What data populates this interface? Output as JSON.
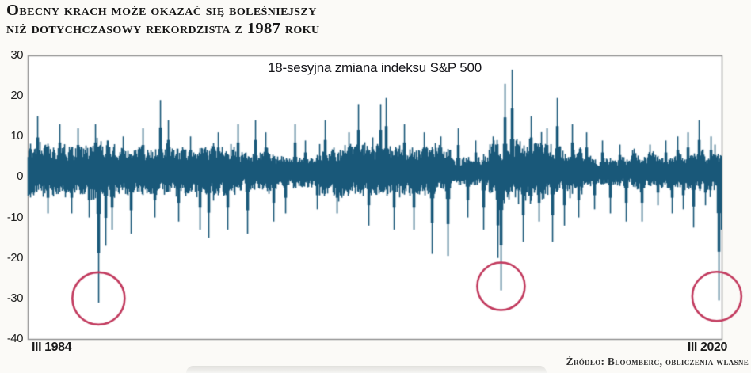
{
  "header": {
    "title_line1": "Obecny krach może okazać się boleśniejszy",
    "title_line2": "niż dotychczasowy rekordzista z 1987 roku"
  },
  "footer": {
    "source": "Źródło: Bloomberg, obliczenia własne"
  },
  "chart_data": {
    "type": "line",
    "title": "18-sesyjna zmiana indeksu S&P 500",
    "x_start_label": "III 1984",
    "x_end_label": "III 2020",
    "ylim": [
      -40,
      30
    ],
    "yticks": [
      30,
      20,
      10,
      0,
      -10,
      -20,
      -30,
      -40
    ],
    "grid": false,
    "legend": "none",
    "series_color": "#1a587a",
    "plot_border_color": "#8c8c8c",
    "annotation_circle_color": "#c23a5e",
    "baseline_mean": 1.2,
    "volatility_eras": [
      [
        0,
        0.093,
        7.5
      ],
      [
        0.093,
        0.125,
        9
      ],
      [
        0.125,
        0.3,
        7.2
      ],
      [
        0.3,
        0.355,
        6
      ],
      [
        0.355,
        0.42,
        4.8
      ],
      [
        0.42,
        0.52,
        7.8
      ],
      [
        0.52,
        0.61,
        7.3
      ],
      [
        0.61,
        0.665,
        4.5
      ],
      [
        0.665,
        0.75,
        9
      ],
      [
        0.75,
        0.8,
        6.8
      ],
      [
        0.8,
        0.87,
        4.4
      ],
      [
        0.87,
        0.96,
        5.4
      ],
      [
        0.96,
        1.001,
        6
      ]
    ],
    "key_points": [
      [
        0.014,
        15
      ],
      [
        0.029,
        -9
      ],
      [
        0.046,
        13
      ],
      [
        0.063,
        -9
      ],
      [
        0.072,
        12
      ],
      [
        0.088,
        -10
      ],
      [
        0.097,
        13
      ],
      [
        0.102,
        -31
      ],
      [
        0.112,
        -17
      ],
      [
        0.121,
        -13
      ],
      [
        0.137,
        10
      ],
      [
        0.149,
        -14
      ],
      [
        0.166,
        12
      ],
      [
        0.183,
        -10
      ],
      [
        0.191,
        19
      ],
      [
        0.202,
        14
      ],
      [
        0.217,
        -11
      ],
      [
        0.234,
        10
      ],
      [
        0.248,
        -13
      ],
      [
        0.261,
        -15
      ],
      [
        0.274,
        11
      ],
      [
        0.288,
        -13
      ],
      [
        0.303,
        13
      ],
      [
        0.317,
        -14
      ],
      [
        0.328,
        14
      ],
      [
        0.343,
        11
      ],
      [
        0.354,
        -11
      ],
      [
        0.371,
        -9
      ],
      [
        0.385,
        13
      ],
      [
        0.4,
        9
      ],
      [
        0.417,
        -8
      ],
      [
        0.429,
        14
      ],
      [
        0.446,
        -9
      ],
      [
        0.463,
        11
      ],
      [
        0.477,
        18
      ],
      [
        0.491,
        -12
      ],
      [
        0.509,
        18
      ],
      [
        0.517,
        19.5
      ],
      [
        0.528,
        -13
      ],
      [
        0.543,
        13
      ],
      [
        0.557,
        -13
      ],
      [
        0.571,
        11
      ],
      [
        0.583,
        -19
      ],
      [
        0.595,
        10
      ],
      [
        0.606,
        -19.5
      ],
      [
        0.621,
        12
      ],
      [
        0.634,
        -10
      ],
      [
        0.646,
        9
      ],
      [
        0.657,
        -13
      ],
      [
        0.671,
        10
      ],
      [
        0.678,
        -20
      ],
      [
        0.682,
        -28
      ],
      [
        0.688,
        23
      ],
      [
        0.698,
        26.5
      ],
      [
        0.714,
        -16
      ],
      [
        0.726,
        15
      ],
      [
        0.737,
        -11
      ],
      [
        0.749,
        12
      ],
      [
        0.757,
        -16
      ],
      [
        0.763,
        19.5
      ],
      [
        0.774,
        -12
      ],
      [
        0.785,
        13
      ],
      [
        0.794,
        -10
      ],
      [
        0.806,
        11
      ],
      [
        0.817,
        -8
      ],
      [
        0.829,
        9
      ],
      [
        0.84,
        -9
      ],
      [
        0.854,
        8
      ],
      [
        0.863,
        -11
      ],
      [
        0.874,
        7
      ],
      [
        0.886,
        -11
      ],
      [
        0.897,
        8
      ],
      [
        0.909,
        -7
      ],
      [
        0.92,
        9
      ],
      [
        0.929,
        -9
      ],
      [
        0.937,
        10
      ],
      [
        0.945,
        -8
      ],
      [
        0.952,
        11
      ],
      [
        0.96,
        -12.5
      ],
      [
        0.968,
        14
      ],
      [
        0.977,
        -7
      ],
      [
        0.985,
        10
      ],
      [
        0.991,
        8
      ],
      [
        0.997,
        -30.5
      ],
      [
        1,
        -13
      ]
    ],
    "highlight_circles": [
      {
        "x": 0.102,
        "value": -30,
        "r": 33
      },
      {
        "x": 0.682,
        "value": -27,
        "r": 30
      },
      {
        "x": 0.993,
        "value": -29.5,
        "r": 31
      }
    ]
  }
}
